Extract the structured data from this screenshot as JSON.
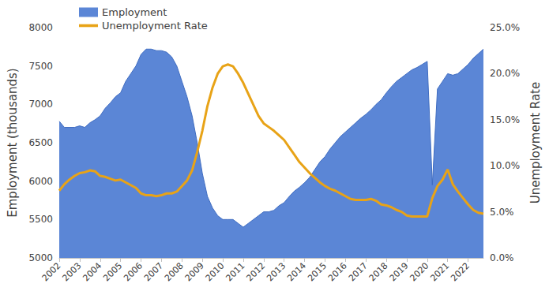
{
  "chart_data": {
    "type": "line",
    "categories": [
      "2002",
      null,
      null,
      null,
      "2003",
      null,
      null,
      null,
      "2004",
      null,
      null,
      null,
      "2005",
      null,
      null,
      null,
      "2006",
      null,
      null,
      null,
      "2007",
      null,
      null,
      null,
      "2008",
      null,
      null,
      null,
      "2009",
      null,
      null,
      null,
      "2010",
      null,
      null,
      null,
      "2011",
      null,
      null,
      null,
      "2012",
      null,
      null,
      null,
      "2013",
      null,
      null,
      null,
      "2014",
      null,
      null,
      null,
      "2015",
      null,
      null,
      null,
      "2016",
      null,
      null,
      null,
      "2017",
      null,
      null,
      null,
      "2018",
      null,
      null,
      null,
      "2019",
      null,
      null,
      null,
      "2020",
      null,
      null,
      null,
      "2021",
      null,
      null,
      null,
      "2022",
      null,
      null,
      null
    ],
    "series": [
      {
        "name": "Employment",
        "type": "area",
        "color": "#5b86d6",
        "axis": "y",
        "values": [
          6780,
          6700,
          6700,
          6700,
          6720,
          6700,
          6760,
          6800,
          6850,
          6950,
          7020,
          7100,
          7150,
          7300,
          7400,
          7500,
          7650,
          7720,
          7720,
          7700,
          7700,
          7680,
          7620,
          7500,
          7300,
          7100,
          6850,
          6500,
          6100,
          5800,
          5650,
          5550,
          5500,
          5500,
          5500,
          5450,
          5400,
          5450,
          5500,
          5550,
          5600,
          5600,
          5620,
          5680,
          5720,
          5800,
          5870,
          5920,
          5980,
          6050,
          6150,
          6250,
          6320,
          6420,
          6500,
          6580,
          6640,
          6700,
          6760,
          6820,
          6870,
          6930,
          7000,
          7060,
          7150,
          7230,
          7300,
          7350,
          7400,
          7450,
          7480,
          7520,
          7560,
          5950,
          7200,
          7300,
          7400,
          7380,
          7400,
          7460,
          7520,
          7600,
          7660,
          7720
        ]
      },
      {
        "name": "Unemployment Rate",
        "type": "line",
        "color": "#e8a317",
        "axis": "y2",
        "values": [
          7.3,
          8.0,
          8.5,
          8.9,
          9.2,
          9.3,
          9.5,
          9.4,
          8.9,
          8.8,
          8.6,
          8.4,
          8.5,
          8.2,
          7.9,
          7.6,
          7.0,
          6.8,
          6.8,
          6.7,
          6.8,
          7.0,
          7.0,
          7.2,
          7.8,
          8.4,
          9.5,
          11.5,
          13.8,
          16.5,
          18.5,
          20.0,
          20.8,
          21.0,
          20.8,
          20.0,
          19.0,
          17.8,
          16.6,
          15.4,
          14.6,
          14.2,
          13.8,
          13.3,
          12.8,
          12.0,
          11.2,
          10.4,
          9.8,
          9.2,
          8.7,
          8.2,
          7.8,
          7.5,
          7.3,
          7.0,
          6.7,
          6.4,
          6.3,
          6.3,
          6.3,
          6.4,
          6.2,
          5.8,
          5.7,
          5.5,
          5.2,
          5.0,
          4.6,
          4.5,
          4.5,
          4.5,
          4.5,
          6.5,
          7.8,
          8.5,
          9.6,
          8.0,
          7.2,
          6.5,
          5.8,
          5.2,
          4.9,
          4.8
        ]
      }
    ],
    "y_label": "Employment (thousands)",
    "y2_label": "Unemployment Rate",
    "ylim": [
      5000,
      8000
    ],
    "yticks": [
      5000,
      5500,
      6000,
      6500,
      7000,
      7500,
      8000
    ],
    "y2lim": [
      0,
      25
    ],
    "y2ticks": [
      {
        "value": 0,
        "label": "0.0%"
      },
      {
        "value": 5,
        "label": "5.0%"
      },
      {
        "value": 10,
        "label": "10.0%"
      },
      {
        "value": 15,
        "label": "15.0%"
      },
      {
        "value": 20,
        "label": "20.0%"
      },
      {
        "value": 25,
        "label": "25.0%"
      }
    ],
    "grid": false,
    "legend": "top-left"
  }
}
